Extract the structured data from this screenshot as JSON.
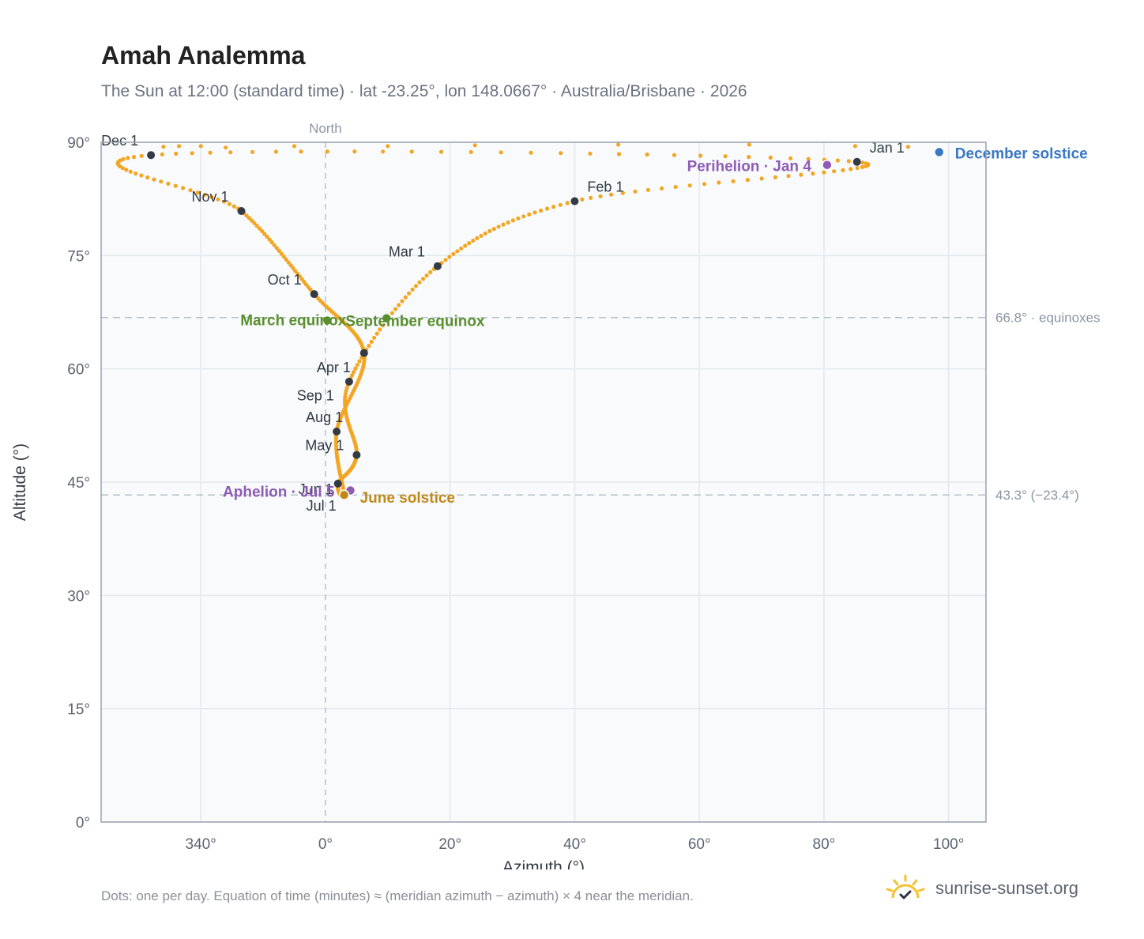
{
  "chart_data": {
    "type": "scatter",
    "title": "Amah Analemma",
    "subtitle": "The Sun at 12:00 (standard time) · lat -23.25°, lon 148.0667° · Australia/Brisbane · 2026",
    "xlabel": "Azimuth (°)",
    "ylabel": "Altitude (°)",
    "x_ticks": [
      "340°",
      "0°",
      "20°",
      "40°",
      "60°",
      "80°",
      "100°"
    ],
    "y_ticks": [
      "0°",
      "15°",
      "30°",
      "45°",
      "60°",
      "75°",
      "90°"
    ],
    "xlim": [
      324,
      106
    ],
    "ylim": [
      0,
      90
    ],
    "north_label": "North",
    "reference_lines": [
      {
        "altitude": 66.8,
        "label": "66.8° · equinoxes"
      },
      {
        "altitude": 43.3,
        "label": "43.3° (−23.4°)"
      }
    ],
    "month_markers": [
      {
        "label": "Jan 1",
        "azimuth": 85.3,
        "altitude": 87.4
      },
      {
        "label": "Feb 1",
        "azimuth": 40.0,
        "altitude": 82.2
      },
      {
        "label": "Mar 1",
        "azimuth": 18.0,
        "altitude": 73.6
      },
      {
        "label": "Apr 1",
        "azimuth": 3.8,
        "altitude": 58.3
      },
      {
        "label": "May 1",
        "azimuth": 5.0,
        "altitude": 48.6
      },
      {
        "label": "Jun 1",
        "azimuth": 2.0,
        "altitude": 44.8
      },
      {
        "label": "Jul 1",
        "azimuth": 3.0,
        "altitude": 43.3
      },
      {
        "label": "Aug 1",
        "azimuth": 1.8,
        "altitude": 51.7
      },
      {
        "label": "Sep 1",
        "azimuth": 6.2,
        "altitude": 62.1
      },
      {
        "label": "Oct 1",
        "azimuth": -1.8,
        "altitude": 69.9
      },
      {
        "label": "Nov 1",
        "azimuth": -13.5,
        "altitude": 80.9
      },
      {
        "label": "Dec 1",
        "azimuth": -28.0,
        "altitude": 88.3
      }
    ],
    "events": [
      {
        "label": "December solstice",
        "azimuth": 98.5,
        "altitude": 88.7,
        "color": "#3a78c2"
      },
      {
        "label": "Perihelion · Jan 4",
        "azimuth": 80.5,
        "altitude": 87.0,
        "color": "#8e5cb5"
      },
      {
        "label": "March equinox",
        "azimuth": 0.3,
        "altitude": 66.4,
        "color": "#5a8f2e"
      },
      {
        "label": "September equinox",
        "azimuth": 9.8,
        "altitude": 66.7,
        "color": "#5a8f2e"
      },
      {
        "label": "Aphelion · Jul 5",
        "azimuth": 4.0,
        "altitude": 43.9,
        "color": "#8e5cb5"
      },
      {
        "label": "June solstice",
        "azimuth": 3.0,
        "altitude": 43.3,
        "color": "#c08a1a"
      }
    ],
    "curve_color": "#f2a623",
    "marker_color": "#333a44",
    "grid": true
  },
  "footnote": "Dots: one per day. Equation of time (minutes) ≈ (meridian azimuth − azimuth) × 4 near the meridian.",
  "brand": {
    "name": "sunrise-sunset.org",
    "icon": "sun-logo-icon"
  }
}
